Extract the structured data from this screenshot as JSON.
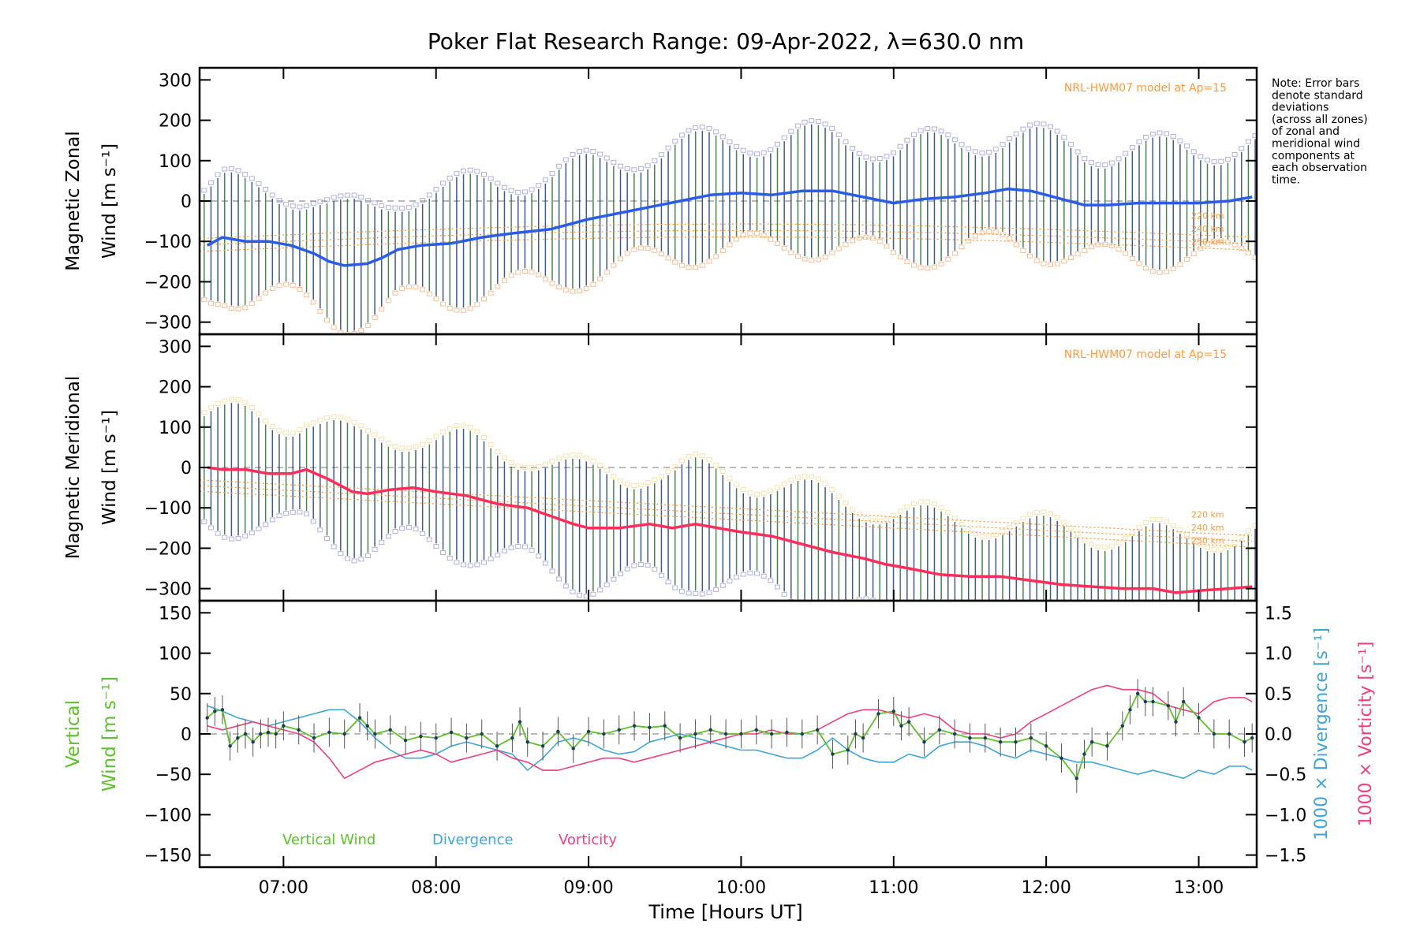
{
  "title": "Poker Flat Research Range: 09-Apr-2022, λ=630.0 nm",
  "note_lines": [
    "Note: Error bars",
    "denote standard",
    "deviations",
    "(across all zones)",
    "of zonal and",
    "meridional wind",
    "components at",
    "each observation",
    "time."
  ],
  "colors": {
    "zonal": "#2a5ce6",
    "meridional": "#ff2d5a",
    "vertical": "#5dc02c",
    "divergence": "#3fa5d6",
    "vorticity": "#ee3f82",
    "errorbar": "#1f3f6f",
    "model": "#ff9a3c",
    "scatter": "#8e8ed8",
    "zero": "#909090"
  },
  "chart_data": [
    {
      "type": "line",
      "panel": "zonal",
      "ylabel_line1": "Magnetic Zonal",
      "ylabel_line2": "Wind [m s⁻¹]",
      "ylim": [
        -330,
        330
      ],
      "yticks": [
        -300,
        -200,
        -100,
        0,
        100,
        200,
        300
      ],
      "ytick_labels": [
        "−300",
        "−200",
        "−100",
        "0",
        "100",
        "200",
        "300"
      ],
      "model_label": "NRL-HWM07 model at Ap=15",
      "model_altitudes": [
        "220 km",
        "240 km",
        "250 km"
      ],
      "errorbar_halfwidth": 150,
      "series": [
        {
          "name": "Zonal wind",
          "x": [
            6.5,
            6.6,
            6.75,
            6.9,
            7.05,
            7.2,
            7.3,
            7.4,
            7.55,
            7.65,
            7.75,
            7.9,
            8.1,
            8.3,
            8.5,
            8.75,
            9.0,
            9.2,
            9.4,
            9.6,
            9.8,
            10.0,
            10.2,
            10.4,
            10.6,
            10.8,
            11.0,
            11.2,
            11.4,
            11.6,
            11.75,
            11.9,
            12.1,
            12.25,
            12.4,
            12.6,
            12.8,
            13.0,
            13.2,
            13.35
          ],
          "values": [
            -110,
            -90,
            -100,
            -100,
            -110,
            -130,
            -150,
            -160,
            -155,
            -140,
            -120,
            -110,
            -105,
            -90,
            -80,
            -70,
            -45,
            -30,
            -15,
            0,
            15,
            20,
            15,
            25,
            25,
            10,
            -5,
            5,
            10,
            20,
            30,
            25,
            5,
            -10,
            -10,
            -5,
            -5,
            -5,
            0,
            10
          ]
        }
      ]
    },
    {
      "type": "line",
      "panel": "meridional",
      "ylabel_line1": "Magnetic Meridional",
      "ylabel_line2": "Wind [m s⁻¹]",
      "ylim": [
        -330,
        330
      ],
      "yticks": [
        -300,
        -200,
        -100,
        0,
        100,
        200,
        300
      ],
      "ytick_labels": [
        "−300",
        "−200",
        "−100",
        "0",
        "100",
        "200",
        "300"
      ],
      "model_label": "NRL-HWM07 model at Ap=15",
      "model_altitudes": [
        "220 km",
        "240 km",
        "250 km"
      ],
      "errorbar_halfwidth": 150,
      "series": [
        {
          "name": "Meridional wind",
          "x": [
            6.5,
            6.6,
            6.75,
            6.9,
            7.05,
            7.15,
            7.3,
            7.45,
            7.55,
            7.7,
            7.85,
            8.0,
            8.2,
            8.4,
            8.6,
            8.75,
            8.9,
            9.0,
            9.2,
            9.4,
            9.55,
            9.7,
            9.85,
            10.0,
            10.2,
            10.4,
            10.6,
            10.8,
            10.95,
            11.1,
            11.3,
            11.5,
            11.7,
            11.9,
            12.1,
            12.3,
            12.5,
            12.7,
            12.85,
            13.0,
            13.2,
            13.35
          ],
          "values": [
            0,
            -5,
            -5,
            -15,
            -15,
            -5,
            -30,
            -60,
            -65,
            -55,
            -50,
            -60,
            -70,
            -90,
            -100,
            -120,
            -140,
            -150,
            -150,
            -140,
            -150,
            -140,
            -150,
            -160,
            -170,
            -190,
            -210,
            -225,
            -240,
            -250,
            -265,
            -270,
            -270,
            -280,
            -290,
            -295,
            -300,
            -300,
            -310,
            -305,
            -300,
            -295
          ]
        }
      ]
    },
    {
      "type": "line",
      "panel": "vertical",
      "ylabel_line1": "Vertical",
      "ylabel_line2": "Wind [m s⁻¹]",
      "ylim": [
        -165,
        165
      ],
      "yticks": [
        -150,
        -100,
        -50,
        0,
        50,
        100,
        150
      ],
      "ytick_labels": [
        "−150",
        "−100",
        "−50",
        "0",
        "50",
        "100",
        "150"
      ],
      "y2label_div": "1000 × Divergence [s⁻¹]",
      "y2label_vort": "1000 × Vorticity [s⁻¹]",
      "y2lim": [
        -1.65,
        1.65
      ],
      "y2ticks": [
        -1.5,
        -1.0,
        -0.5,
        0.0,
        0.5,
        1.0,
        1.5
      ],
      "y2tick_labels": [
        "−1.5",
        "−1.0",
        "−0.5",
        "0.0",
        "0.5",
        "1.0",
        "1.5"
      ],
      "legend": [
        "Vertical Wind",
        "Divergence",
        "Vorticity"
      ],
      "series": [
        {
          "name": "Vertical Wind",
          "axis": "left",
          "x": [
            6.5,
            6.55,
            6.6,
            6.65,
            6.7,
            6.75,
            6.8,
            6.85,
            6.9,
            6.95,
            7.0,
            7.1,
            7.2,
            7.3,
            7.4,
            7.5,
            7.55,
            7.6,
            7.7,
            7.8,
            7.9,
            8.0,
            8.1,
            8.2,
            8.3,
            8.4,
            8.5,
            8.55,
            8.6,
            8.7,
            8.8,
            8.9,
            9.0,
            9.1,
            9.2,
            9.3,
            9.4,
            9.5,
            9.6,
            9.7,
            9.8,
            9.9,
            10.0,
            10.1,
            10.2,
            10.3,
            10.4,
            10.5,
            10.6,
            10.7,
            10.75,
            10.8,
            10.9,
            11.0,
            11.05,
            11.1,
            11.2,
            11.3,
            11.4,
            11.5,
            11.6,
            11.7,
            11.8,
            11.9,
            12.0,
            12.1,
            12.2,
            12.25,
            12.3,
            12.4,
            12.5,
            12.55,
            12.6,
            12.65,
            12.7,
            12.8,
            12.85,
            12.9,
            13.0,
            13.1,
            13.2,
            13.3,
            13.35
          ],
          "values": [
            20,
            28,
            30,
            -15,
            -5,
            0,
            -10,
            0,
            2,
            0,
            10,
            5,
            -5,
            2,
            0,
            20,
            10,
            0,
            5,
            -8,
            -3,
            -5,
            2,
            -5,
            0,
            -15,
            -5,
            15,
            -10,
            -15,
            3,
            -18,
            3,
            0,
            5,
            10,
            8,
            10,
            -5,
            0,
            5,
            0,
            0,
            5,
            0,
            2,
            0,
            5,
            -25,
            -20,
            0,
            -5,
            25,
            28,
            10,
            15,
            -10,
            5,
            0,
            -5,
            -5,
            -10,
            -10,
            -5,
            -15,
            -30,
            -55,
            -25,
            -10,
            -15,
            10,
            30,
            50,
            40,
            40,
            35,
            15,
            40,
            20,
            0,
            0,
            -10,
            -5
          ]
        },
        {
          "name": "Divergence",
          "axis": "right",
          "x": [
            6.5,
            6.6,
            6.7,
            6.8,
            6.9,
            7.0,
            7.1,
            7.2,
            7.3,
            7.4,
            7.5,
            7.6,
            7.7,
            7.8,
            7.9,
            8.0,
            8.1,
            8.2,
            8.3,
            8.4,
            8.5,
            8.6,
            8.7,
            8.8,
            8.9,
            9.0,
            9.1,
            9.2,
            9.3,
            9.4,
            9.5,
            9.6,
            9.7,
            9.8,
            9.9,
            10.0,
            10.1,
            10.2,
            10.3,
            10.4,
            10.5,
            10.6,
            10.7,
            10.8,
            10.9,
            11.0,
            11.1,
            11.2,
            11.3,
            11.4,
            11.5,
            11.6,
            11.7,
            11.8,
            11.9,
            12.0,
            12.1,
            12.2,
            12.3,
            12.4,
            12.5,
            12.6,
            12.7,
            12.8,
            12.9,
            13.0,
            13.1,
            13.2,
            13.3,
            13.35
          ],
          "values": [
            0.35,
            0.28,
            0.2,
            0.15,
            0.1,
            0.15,
            0.2,
            0.25,
            0.3,
            0.3,
            0.15,
            -0.05,
            -0.2,
            -0.3,
            -0.3,
            -0.25,
            -0.15,
            -0.1,
            -0.15,
            -0.2,
            -0.25,
            -0.45,
            -0.3,
            -0.1,
            -0.05,
            -0.1,
            -0.2,
            -0.25,
            -0.22,
            -0.1,
            -0.05,
            0.0,
            -0.05,
            -0.1,
            -0.15,
            -0.2,
            -0.2,
            -0.25,
            -0.3,
            -0.3,
            -0.2,
            -0.05,
            -0.2,
            -0.3,
            -0.35,
            -0.35,
            -0.25,
            -0.3,
            -0.15,
            -0.1,
            -0.1,
            -0.15,
            -0.25,
            -0.3,
            -0.2,
            -0.25,
            -0.3,
            -0.35,
            -0.35,
            -0.4,
            -0.45,
            -0.5,
            -0.45,
            -0.5,
            -0.55,
            -0.45,
            -0.5,
            -0.4,
            -0.4,
            -0.45
          ]
        },
        {
          "name": "Vorticity",
          "axis": "right",
          "x": [
            6.5,
            6.6,
            6.7,
            6.8,
            6.9,
            7.0,
            7.1,
            7.2,
            7.3,
            7.4,
            7.5,
            7.6,
            7.7,
            7.8,
            7.9,
            8.0,
            8.1,
            8.2,
            8.3,
            8.4,
            8.5,
            8.6,
            8.7,
            8.8,
            8.9,
            9.0,
            9.1,
            9.2,
            9.3,
            9.4,
            9.5,
            9.6,
            9.7,
            9.8,
            9.9,
            10.0,
            10.1,
            10.2,
            10.3,
            10.4,
            10.5,
            10.6,
            10.7,
            10.8,
            10.9,
            11.0,
            11.1,
            11.2,
            11.3,
            11.4,
            11.5,
            11.6,
            11.7,
            11.8,
            11.9,
            12.0,
            12.1,
            12.2,
            12.3,
            12.4,
            12.5,
            12.6,
            12.7,
            12.8,
            12.9,
            13.0,
            13.1,
            13.2,
            13.3,
            13.35
          ],
          "values": [
            0.1,
            0.05,
            0.1,
            0.15,
            0.1,
            0.05,
            0.0,
            -0.1,
            -0.3,
            -0.55,
            -0.45,
            -0.35,
            -0.3,
            -0.25,
            -0.2,
            -0.25,
            -0.35,
            -0.3,
            -0.25,
            -0.2,
            -0.3,
            -0.35,
            -0.45,
            -0.45,
            -0.4,
            -0.35,
            -0.3,
            -0.3,
            -0.35,
            -0.3,
            -0.25,
            -0.2,
            -0.15,
            -0.1,
            -0.05,
            0.0,
            0.0,
            0.05,
            0.0,
            0.0,
            0.05,
            0.15,
            0.25,
            0.3,
            0.3,
            0.25,
            0.2,
            0.25,
            0.2,
            0.05,
            0.0,
            0.0,
            -0.05,
            0.0,
            0.15,
            0.25,
            0.35,
            0.45,
            0.55,
            0.6,
            0.55,
            0.55,
            0.5,
            0.35,
            0.3,
            0.25,
            0.4,
            0.45,
            0.45,
            0.4
          ]
        }
      ]
    }
  ],
  "x_axis": {
    "label": "Time [Hours UT]",
    "xlim": [
      6.45,
      13.38
    ],
    "ticks": [
      7,
      8,
      9,
      10,
      11,
      12,
      13
    ],
    "tick_labels": [
      "07:00",
      "08:00",
      "09:00",
      "10:00",
      "11:00",
      "12:00",
      "13:00"
    ]
  }
}
